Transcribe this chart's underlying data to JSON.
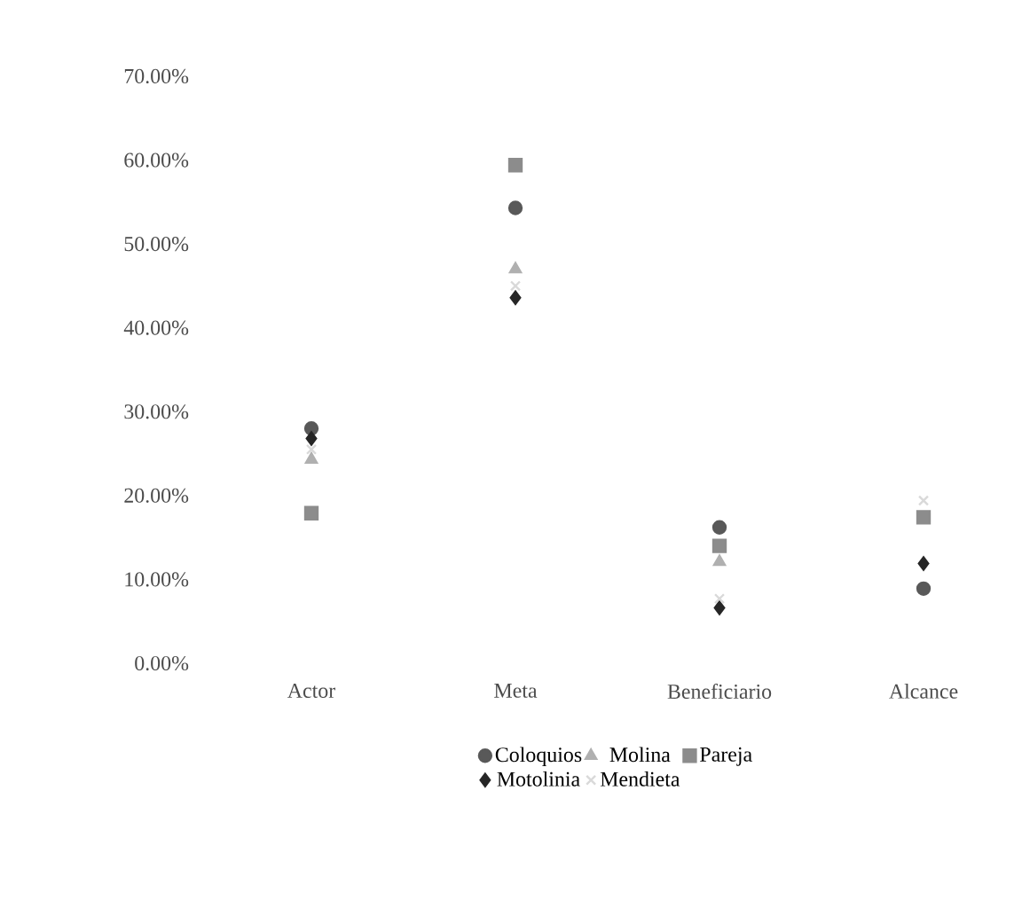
{
  "chart_data": {
    "type": "scatter",
    "categories": [
      "Actor",
      "Meta",
      "Beneficiario",
      "Alcance"
    ],
    "series": [
      {
        "name": "Coloquios",
        "color": "#595959",
        "marker": "circle",
        "values": [
          28,
          54.3,
          16.2,
          8.9
        ]
      },
      {
        "name": "Molina",
        "color": "#b0b0b0",
        "marker": "triangle",
        "values": [
          24.3,
          47,
          12.1,
          null
        ]
      },
      {
        "name": "Pareja",
        "color": "#8c8c8c",
        "marker": "square",
        "values": [
          17.9,
          59.4,
          14,
          17.4
        ]
      },
      {
        "name": "Motolinia",
        "color": "#262626",
        "marker": "diamond",
        "values": [
          26.8,
          43.6,
          6.6,
          11.9
        ]
      },
      {
        "name": "Mendieta",
        "color": "#d9d9d9",
        "marker": "cross",
        "values": [
          25.5,
          45,
          7.7,
          19.4
        ]
      }
    ],
    "ylim": [
      0,
      70
    ],
    "yticks": [
      {
        "value": 0,
        "label": "0.00%"
      },
      {
        "value": 10,
        "label": "10.00%"
      },
      {
        "value": 20,
        "label": "20.00%"
      },
      {
        "value": 30,
        "label": "30.00%"
      },
      {
        "value": 40,
        "label": "40.00%"
      },
      {
        "value": 50,
        "label": "50.00%"
      },
      {
        "value": 60,
        "label": "60.00%"
      },
      {
        "value": 70,
        "label": "70.00%"
      }
    ],
    "grid": false,
    "legend": "bottom"
  }
}
